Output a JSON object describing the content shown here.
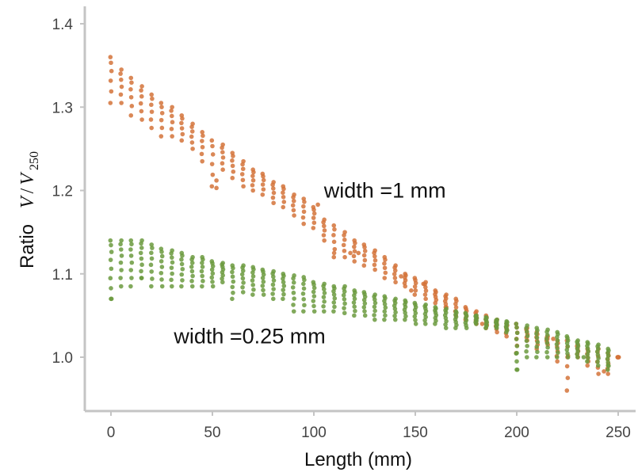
{
  "chart_data": {
    "type": "scatter",
    "title": "",
    "xlabel": "Length (mm)",
    "ylabel": {
      "word": "Ratio",
      "symbol_main": "V",
      "symbol_slash": "/",
      "symbol_denom": "V",
      "symbol_sub": "250"
    },
    "xlim": [
      -25,
      255
    ],
    "ylim": [
      0.94,
      1.42
    ],
    "xticks": [
      0,
      50,
      100,
      150,
      200,
      250
    ],
    "xtick_labels": [
      "0",
      "50",
      "100",
      "150",
      "200",
      "250"
    ],
    "yticks": [
      1.0,
      1.1,
      1.2,
      1.3,
      1.4
    ],
    "ytick_labels": [
      "1.0",
      "1.1",
      "1.2",
      "1.3",
      "1.4"
    ],
    "grid": false,
    "annotations": [
      {
        "text": "width =1 mm",
        "x": 105,
        "y": 1.2
      },
      {
        "text": "width =0.25 mm",
        "x": 31,
        "y": 1.025
      }
    ],
    "series": [
      {
        "color": "#d4733a",
        "anchor_x": [
          0,
          5,
          10,
          15,
          20,
          25,
          30,
          35,
          40,
          45,
          50,
          55,
          60,
          65,
          70,
          75,
          80,
          85,
          90,
          95,
          100,
          105,
          110,
          115,
          120,
          125,
          130,
          135,
          140,
          145,
          150,
          155,
          160,
          165,
          170,
          175,
          180,
          185,
          190,
          195,
          200,
          205,
          210,
          215,
          220,
          225,
          230,
          235,
          240,
          245,
          250
        ],
        "anchor_top": [
          1.36,
          1.345,
          1.335,
          1.325,
          1.315,
          1.305,
          1.3,
          1.29,
          1.28,
          1.27,
          1.26,
          1.255,
          1.245,
          1.235,
          1.225,
          1.22,
          1.21,
          1.205,
          1.195,
          1.19,
          1.18,
          1.165,
          1.158,
          1.15,
          1.14,
          1.135,
          1.128,
          1.12,
          1.11,
          1.1,
          1.095,
          1.09,
          1.08,
          1.075,
          1.07,
          1.06,
          1.055,
          1.05,
          1.045,
          1.04,
          1.04,
          1.035,
          1.03,
          1.025,
          1.02,
          1.02,
          1.015,
          1.01,
          1.01,
          1.005,
          1.0
        ],
        "anchor_bottom": [
          1.305,
          1.305,
          1.29,
          1.285,
          1.275,
          1.265,
          1.265,
          1.26,
          1.25,
          1.235,
          1.205,
          1.225,
          1.215,
          1.205,
          1.2,
          1.195,
          1.185,
          1.18,
          1.17,
          1.16,
          1.155,
          1.14,
          1.12,
          1.12,
          1.115,
          1.11,
          1.105,
          1.095,
          1.09,
          1.085,
          1.075,
          1.07,
          1.065,
          1.06,
          1.05,
          1.045,
          1.04,
          1.035,
          1.03,
          1.025,
          1.005,
          1.02,
          1.01,
          1.015,
          0.995,
          0.96,
          1.0,
          0.99,
          0.98,
          0.98,
          1.0
        ],
        "outliers": [
          {
            "x": 52,
            "y": 1.203
          },
          {
            "x": 52,
            "y": 1.212
          },
          {
            "x": 102,
            "y": 1.183
          },
          {
            "x": 110,
            "y": 1.125
          },
          {
            "x": 118,
            "y": 1.125
          },
          {
            "x": 122,
            "y": 1.125
          },
          {
            "x": 143,
            "y": 1.097
          },
          {
            "x": 148,
            "y": 1.08
          },
          {
            "x": 154,
            "y": 1.088
          },
          {
            "x": 165,
            "y": 1.06
          },
          {
            "x": 183,
            "y": 1.04
          },
          {
            "x": 195,
            "y": 1.033
          },
          {
            "x": 218,
            "y": 1.022
          },
          {
            "x": 225,
            "y": 1.0
          },
          {
            "x": 243,
            "y": 0.983
          }
        ],
        "points_per_column": 6
      },
      {
        "color": "#6b9a3e",
        "anchor_x": [
          0,
          5,
          10,
          15,
          20,
          25,
          30,
          35,
          40,
          45,
          50,
          55,
          60,
          65,
          70,
          75,
          80,
          85,
          90,
          95,
          100,
          105,
          110,
          115,
          120,
          125,
          130,
          135,
          140,
          145,
          150,
          155,
          160,
          165,
          170,
          175,
          180,
          185,
          190,
          195,
          200,
          205,
          210,
          215,
          220,
          225,
          230,
          235,
          240,
          245
        ],
        "anchor_top": [
          1.14,
          1.14,
          1.14,
          1.14,
          1.135,
          1.13,
          1.128,
          1.125,
          1.12,
          1.12,
          1.115,
          1.113,
          1.11,
          1.11,
          1.108,
          1.105,
          1.103,
          1.1,
          1.098,
          1.096,
          1.09,
          1.088,
          1.085,
          1.085,
          1.08,
          1.078,
          1.075,
          1.073,
          1.07,
          1.068,
          1.065,
          1.063,
          1.06,
          1.058,
          1.055,
          1.053,
          1.05,
          1.048,
          1.045,
          1.043,
          1.04,
          1.038,
          1.035,
          1.033,
          1.03,
          1.025,
          1.02,
          1.018,
          1.015,
          1.01
        ],
        "anchor_bottom": [
          1.07,
          1.085,
          1.085,
          1.095,
          1.085,
          1.085,
          1.085,
          1.085,
          1.085,
          1.085,
          1.085,
          1.09,
          1.07,
          1.078,
          1.075,
          1.075,
          1.07,
          1.07,
          1.055,
          1.055,
          1.055,
          1.055,
          1.055,
          1.053,
          1.05,
          1.05,
          1.045,
          1.045,
          1.045,
          1.045,
          1.04,
          1.04,
          1.04,
          1.035,
          1.035,
          1.035,
          1.04,
          1.035,
          1.035,
          1.03,
          0.985,
          1.0,
          1.0,
          1.0,
          1.0,
          1.0,
          1.0,
          0.995,
          0.99,
          0.985
        ],
        "outliers": [
          {
            "x": 0,
            "y": 1.07
          },
          {
            "x": 15,
            "y": 1.095
          },
          {
            "x": 200,
            "y": 0.985
          },
          {
            "x": 200,
            "y": 1.005
          },
          {
            "x": 233,
            "y": 1.0
          },
          {
            "x": 245,
            "y": 0.99
          }
        ],
        "points_per_column": 8
      }
    ]
  }
}
